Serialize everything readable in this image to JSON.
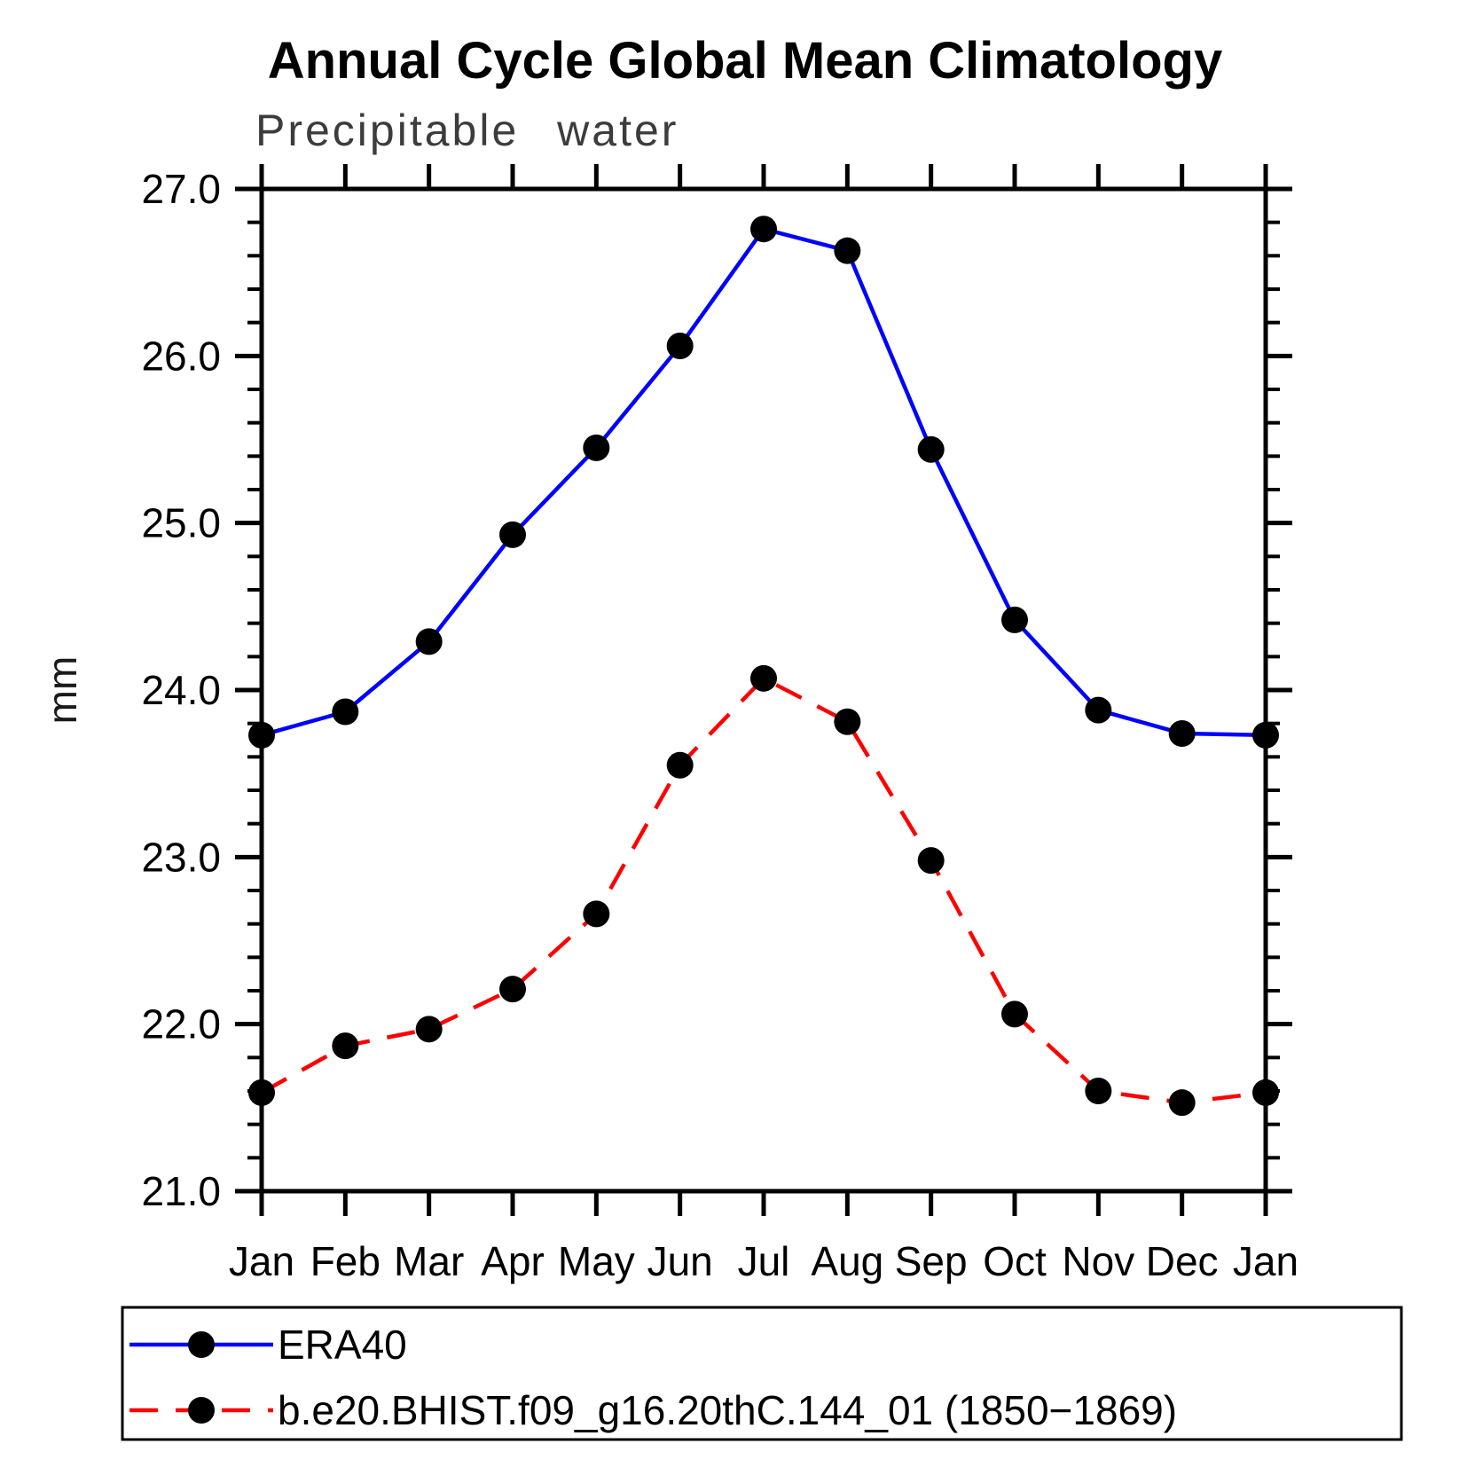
{
  "chart_data": {
    "type": "line",
    "title": "Annual Cycle Global Mean Climatology",
    "subtitle": "Precipitable water",
    "ylabel": "mm",
    "xlabel": "",
    "categories": [
      "Jan",
      "Feb",
      "Mar",
      "Apr",
      "May",
      "Jun",
      "Jul",
      "Aug",
      "Sep",
      "Oct",
      "Nov",
      "Dec",
      "Jan"
    ],
    "ylim": [
      21.0,
      27.0
    ],
    "ytick_interval": 1.0,
    "yminor_interval": 0.2,
    "ytick_labels": [
      "21.0",
      "22.0",
      "23.0",
      "24.0",
      "25.0",
      "26.0",
      "27.0"
    ],
    "grid": false,
    "legend_position": "bottom-left-box",
    "series": [
      {
        "name": "ERA40",
        "color": "#0000ff",
        "line_style": "solid",
        "marker": "circle",
        "marker_color": "#000000",
        "values": [
          23.73,
          23.87,
          24.29,
          24.93,
          25.45,
          26.06,
          26.76,
          26.63,
          25.44,
          24.42,
          23.88,
          23.74,
          23.73
        ]
      },
      {
        "name": "b.e20.BHIST.f09_g16.20thC.144_01 (1850−1869)",
        "color": "#ff0000",
        "line_style": "dashed",
        "marker": "circle",
        "marker_color": "#000000",
        "values": [
          21.59,
          21.87,
          21.97,
          22.21,
          22.66,
          23.55,
          24.07,
          23.81,
          22.98,
          22.06,
          21.6,
          21.53,
          21.59
        ]
      }
    ]
  }
}
